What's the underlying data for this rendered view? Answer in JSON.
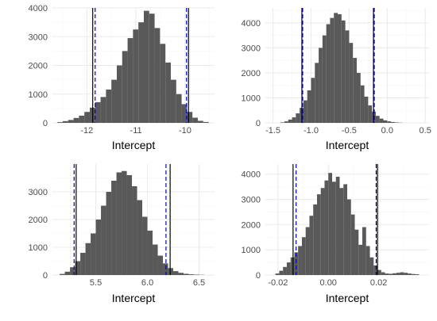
{
  "colors": {
    "bar": "#595959",
    "grid_major": "#ebebeb",
    "grid_minor": "#f5f5f5",
    "solid_line": "#000000",
    "dashed_line": "#0000cc",
    "tick_text": "#4d4d4d",
    "label_text": "#000000"
  },
  "chart_data": [
    {
      "type": "histogram",
      "xlabel": "Intercept",
      "ylabel": "",
      "grid": true,
      "xlim": [
        -12.7,
        -9.4
      ],
      "ylim": [
        0,
        4000
      ],
      "x_ticks": [
        -12,
        -11,
        -10
      ],
      "x_tick_labels": [
        "-12",
        "-11",
        "-10"
      ],
      "y_ticks": [
        0,
        1000,
        2000,
        3000,
        4000
      ],
      "y_tick_labels": [
        "0",
        "1000",
        "2000",
        "3000",
        "4000"
      ],
      "bins": [
        {
          "x0": -12.6,
          "x1": -12.49,
          "count": 25
        },
        {
          "x0": -12.49,
          "x1": -12.38,
          "count": 60
        },
        {
          "x0": -12.38,
          "x1": -12.27,
          "count": 100
        },
        {
          "x0": -12.27,
          "x1": -12.16,
          "count": 170
        },
        {
          "x0": -12.16,
          "x1": -12.05,
          "count": 250
        },
        {
          "x0": -12.05,
          "x1": -11.94,
          "count": 380
        },
        {
          "x0": -11.94,
          "x1": -11.83,
          "count": 530
        },
        {
          "x0": -11.83,
          "x1": -11.72,
          "count": 720
        },
        {
          "x0": -11.72,
          "x1": -11.61,
          "count": 900
        },
        {
          "x0": -11.61,
          "x1": -11.5,
          "count": 1160
        },
        {
          "x0": -11.5,
          "x1": -11.39,
          "count": 1500
        },
        {
          "x0": -11.39,
          "x1": -11.28,
          "count": 2000
        },
        {
          "x0": -11.28,
          "x1": -11.17,
          "count": 2500
        },
        {
          "x0": -11.17,
          "x1": -11.06,
          "count": 2950
        },
        {
          "x0": -11.06,
          "x1": -10.95,
          "count": 3250
        },
        {
          "x0": -10.95,
          "x1": -10.84,
          "count": 3500
        },
        {
          "x0": -10.84,
          "x1": -10.73,
          "count": 3900
        },
        {
          "x0": -10.73,
          "x1": -10.62,
          "count": 3800
        },
        {
          "x0": -10.62,
          "x1": -10.51,
          "count": 3300
        },
        {
          "x0": -10.51,
          "x1": -10.4,
          "count": 2750
        },
        {
          "x0": -10.4,
          "x1": -10.29,
          "count": 2100
        },
        {
          "x0": -10.29,
          "x1": -10.18,
          "count": 1500
        },
        {
          "x0": -10.18,
          "x1": -10.07,
          "count": 1000
        },
        {
          "x0": -10.07,
          "x1": -9.96,
          "count": 650
        },
        {
          "x0": -9.96,
          "x1": -9.85,
          "count": 380
        },
        {
          "x0": -9.85,
          "x1": -9.74,
          "count": 180
        },
        {
          "x0": -9.74,
          "x1": -9.63,
          "count": 70
        },
        {
          "x0": -9.63,
          "x1": -9.52,
          "count": 30
        }
      ],
      "solid_lines": [
        -11.88,
        -9.93
      ],
      "dashed_lines": [
        -11.83,
        -9.97
      ]
    },
    {
      "type": "histogram",
      "xlabel": "Intercept",
      "ylabel": "",
      "grid": true,
      "xlim": [
        -1.6,
        0.55
      ],
      "ylim": [
        0,
        4600
      ],
      "x_ticks": [
        -1.5,
        -1.0,
        -0.5,
        0.0,
        0.5
      ],
      "x_tick_labels": [
        "-1.5",
        "-1.0",
        "-0.5",
        "0.0",
        "0.5"
      ],
      "y_ticks": [
        0,
        1000,
        2000,
        3000,
        4000
      ],
      "y_tick_labels": [
        "0",
        "1000",
        "2000",
        "3000",
        "4000"
      ],
      "bins": [
        {
          "x0": -1.4,
          "x1": -1.35,
          "count": 20
        },
        {
          "x0": -1.35,
          "x1": -1.3,
          "count": 60
        },
        {
          "x0": -1.3,
          "x1": -1.25,
          "count": 130
        },
        {
          "x0": -1.25,
          "x1": -1.2,
          "count": 220
        },
        {
          "x0": -1.2,
          "x1": -1.15,
          "count": 380
        },
        {
          "x0": -1.15,
          "x1": -1.1,
          "count": 600
        },
        {
          "x0": -1.1,
          "x1": -1.05,
          "count": 900
        },
        {
          "x0": -1.05,
          "x1": -1.0,
          "count": 1300
        },
        {
          "x0": -1.0,
          "x1": -0.95,
          "count": 1800
        },
        {
          "x0": -0.95,
          "x1": -0.9,
          "count": 2400
        },
        {
          "x0": -0.9,
          "x1": -0.85,
          "count": 3000
        },
        {
          "x0": -0.85,
          "x1": -0.8,
          "count": 3500
        },
        {
          "x0": -0.8,
          "x1": -0.75,
          "count": 3950
        },
        {
          "x0": -0.75,
          "x1": -0.7,
          "count": 4200
        },
        {
          "x0": -0.7,
          "x1": -0.65,
          "count": 4400
        },
        {
          "x0": -0.65,
          "x1": -0.6,
          "count": 4350
        },
        {
          "x0": -0.6,
          "x1": -0.55,
          "count": 4100
        },
        {
          "x0": -0.55,
          "x1": -0.5,
          "count": 3700
        },
        {
          "x0": -0.5,
          "x1": -0.45,
          "count": 3200
        },
        {
          "x0": -0.45,
          "x1": -0.4,
          "count": 2600
        },
        {
          "x0": -0.4,
          "x1": -0.35,
          "count": 2000
        },
        {
          "x0": -0.35,
          "x1": -0.3,
          "count": 1500
        },
        {
          "x0": -0.3,
          "x1": -0.25,
          "count": 1050
        },
        {
          "x0": -0.25,
          "x1": -0.2,
          "count": 700
        },
        {
          "x0": -0.2,
          "x1": -0.15,
          "count": 450
        },
        {
          "x0": -0.15,
          "x1": -0.1,
          "count": 280
        },
        {
          "x0": -0.1,
          "x1": -0.05,
          "count": 170
        },
        {
          "x0": -0.05,
          "x1": 0.0,
          "count": 100
        },
        {
          "x0": 0.0,
          "x1": 0.05,
          "count": 60
        },
        {
          "x0": 0.05,
          "x1": 0.1,
          "count": 35
        },
        {
          "x0": 0.1,
          "x1": 0.15,
          "count": 18
        },
        {
          "x0": 0.15,
          "x1": 0.2,
          "count": 8
        }
      ],
      "solid_lines": [
        -1.12,
        -0.18
      ],
      "dashed_lines": [
        -1.11,
        -0.17
      ]
    },
    {
      "type": "histogram",
      "xlabel": "Intercept",
      "ylabel": "",
      "grid": true,
      "xlim": [
        5.08,
        6.65
      ],
      "ylim": [
        0,
        4000
      ],
      "x_ticks": [
        5.5,
        6.0,
        6.5
      ],
      "x_tick_labels": [
        "5.5",
        "6.0",
        "6.5"
      ],
      "y_ticks": [
        0,
        1000,
        2000,
        3000
      ],
      "y_tick_labels": [
        "0",
        "1000",
        "2000",
        "3000"
      ],
      "bins": [
        {
          "x0": 5.15,
          "x1": 5.2,
          "count": 40
        },
        {
          "x0": 5.2,
          "x1": 5.25,
          "count": 120
        },
        {
          "x0": 5.25,
          "x1": 5.3,
          "count": 280
        },
        {
          "x0": 5.3,
          "x1": 5.35,
          "count": 500
        },
        {
          "x0": 5.35,
          "x1": 5.4,
          "count": 800
        },
        {
          "x0": 5.4,
          "x1": 5.45,
          "count": 1150
        },
        {
          "x0": 5.45,
          "x1": 5.5,
          "count": 1500
        },
        {
          "x0": 5.5,
          "x1": 5.55,
          "count": 2000
        },
        {
          "x0": 5.55,
          "x1": 5.6,
          "count": 2500
        },
        {
          "x0": 5.6,
          "x1": 5.65,
          "count": 3000
        },
        {
          "x0": 5.65,
          "x1": 5.7,
          "count": 3400
        },
        {
          "x0": 5.7,
          "x1": 5.75,
          "count": 3700
        },
        {
          "x0": 5.75,
          "x1": 5.8,
          "count": 3750
        },
        {
          "x0": 5.8,
          "x1": 5.85,
          "count": 3600
        },
        {
          "x0": 5.85,
          "x1": 5.9,
          "count": 3200
        },
        {
          "x0": 5.9,
          "x1": 5.95,
          "count": 2700
        },
        {
          "x0": 5.95,
          "x1": 6.0,
          "count": 2100
        },
        {
          "x0": 6.0,
          "x1": 6.05,
          "count": 1600
        },
        {
          "x0": 6.05,
          "x1": 6.1,
          "count": 1100
        },
        {
          "x0": 6.1,
          "x1": 6.15,
          "count": 700
        },
        {
          "x0": 6.15,
          "x1": 6.2,
          "count": 420
        },
        {
          "x0": 6.2,
          "x1": 6.25,
          "count": 250
        },
        {
          "x0": 6.25,
          "x1": 6.3,
          "count": 140
        },
        {
          "x0": 6.3,
          "x1": 6.35,
          "count": 80
        },
        {
          "x0": 6.35,
          "x1": 6.4,
          "count": 45
        },
        {
          "x0": 6.4,
          "x1": 6.45,
          "count": 25
        },
        {
          "x0": 6.45,
          "x1": 6.5,
          "count": 15
        },
        {
          "x0": 6.5,
          "x1": 6.55,
          "count": 8
        }
      ],
      "solid_lines": [
        5.31,
        6.22
      ],
      "dashed_lines": [
        5.29,
        6.18
      ]
    },
    {
      "type": "histogram",
      "xlabel": "Intercept",
      "ylabel": "",
      "grid": true,
      "xlim": [
        -0.025,
        0.04
      ],
      "ylim": [
        0,
        4400
      ],
      "x_ticks": [
        -0.02,
        0.0,
        0.02
      ],
      "x_tick_labels": [
        "-0.02",
        "0.00",
        "0.02"
      ],
      "y_ticks": [
        0,
        1000,
        2000,
        3000,
        4000
      ],
      "y_tick_labels": [
        "0",
        "1000",
        "2000",
        "3000",
        "4000"
      ],
      "bins": [
        {
          "x0": -0.021,
          "x1": -0.0195,
          "count": 60
        },
        {
          "x0": -0.0195,
          "x1": -0.018,
          "count": 170
        },
        {
          "x0": -0.018,
          "x1": -0.0165,
          "count": 320
        },
        {
          "x0": -0.0165,
          "x1": -0.015,
          "count": 500
        },
        {
          "x0": -0.015,
          "x1": -0.0135,
          "count": 700
        },
        {
          "x0": -0.0135,
          "x1": -0.012,
          "count": 900
        },
        {
          "x0": -0.012,
          "x1": -0.0105,
          "count": 1150
        },
        {
          "x0": -0.0105,
          "x1": -0.009,
          "count": 1500
        },
        {
          "x0": -0.009,
          "x1": -0.0075,
          "count": 1900
        },
        {
          "x0": -0.0075,
          "x1": -0.006,
          "count": 2350
        },
        {
          "x0": -0.006,
          "x1": -0.0045,
          "count": 2800
        },
        {
          "x0": -0.0045,
          "x1": -0.003,
          "count": 3200
        },
        {
          "x0": -0.003,
          "x1": -0.0015,
          "count": 3450
        },
        {
          "x0": -0.0015,
          "x1": 0.0,
          "count": 3750
        },
        {
          "x0": 0.0,
          "x1": 0.0015,
          "count": 4050
        },
        {
          "x0": 0.0015,
          "x1": 0.003,
          "count": 3700
        },
        {
          "x0": 0.003,
          "x1": 0.0045,
          "count": 3900
        },
        {
          "x0": 0.0045,
          "x1": 0.006,
          "count": 3450
        },
        {
          "x0": 0.006,
          "x1": 0.0075,
          "count": 3600
        },
        {
          "x0": 0.0075,
          "x1": 0.009,
          "count": 3000
        },
        {
          "x0": 0.009,
          "x1": 0.0105,
          "count": 2400
        },
        {
          "x0": 0.0105,
          "x1": 0.012,
          "count": 1800
        },
        {
          "x0": 0.012,
          "x1": 0.0135,
          "count": 1200
        },
        {
          "x0": 0.0135,
          "x1": 0.015,
          "count": 1900
        },
        {
          "x0": 0.015,
          "x1": 0.0165,
          "count": 1150
        },
        {
          "x0": 0.0165,
          "x1": 0.018,
          "count": 700
        },
        {
          "x0": 0.018,
          "x1": 0.0195,
          "count": 380
        },
        {
          "x0": 0.0195,
          "x1": 0.021,
          "count": 200
        },
        {
          "x0": 0.021,
          "x1": 0.0225,
          "count": 110
        },
        {
          "x0": 0.0225,
          "x1": 0.024,
          "count": 60
        },
        {
          "x0": 0.024,
          "x1": 0.0255,
          "count": 50
        },
        {
          "x0": 0.0255,
          "x1": 0.027,
          "count": 70
        },
        {
          "x0": 0.027,
          "x1": 0.0285,
          "count": 90
        },
        {
          "x0": 0.0285,
          "x1": 0.03,
          "count": 110
        },
        {
          "x0": 0.03,
          "x1": 0.0315,
          "count": 90
        },
        {
          "x0": 0.0315,
          "x1": 0.033,
          "count": 60
        },
        {
          "x0": 0.033,
          "x1": 0.0345,
          "count": 40
        },
        {
          "x0": 0.0345,
          "x1": 0.036,
          "count": 30
        }
      ],
      "solid_lines": [
        -0.014,
        0.0195
      ],
      "dashed_lines": [
        -0.0128,
        0.019
      ]
    }
  ]
}
